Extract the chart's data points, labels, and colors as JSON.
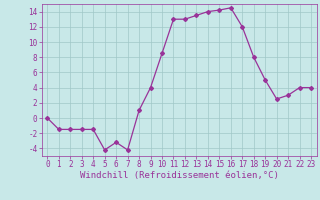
{
  "x": [
    0,
    1,
    2,
    3,
    4,
    5,
    6,
    7,
    8,
    9,
    10,
    11,
    12,
    13,
    14,
    15,
    16,
    17,
    18,
    19,
    20,
    21,
    22,
    23
  ],
  "y": [
    0,
    -1.5,
    -1.5,
    -1.5,
    -1.5,
    -4.2,
    -3.2,
    -4.2,
    1,
    4,
    8.5,
    13,
    13,
    13.5,
    14,
    14.2,
    14.5,
    12,
    8,
    5,
    2.5,
    3,
    4,
    4
  ],
  "line_color": "#993399",
  "marker": "D",
  "marker_size": 2.0,
  "bg_color": "#c8e8e8",
  "grid_color": "#a0c8c8",
  "xlabel": "Windchill (Refroidissement éolien,°C)",
  "xlabel_fontsize": 6.5,
  "ylim": [
    -5,
    15
  ],
  "yticks": [
    -4,
    -2,
    0,
    2,
    4,
    6,
    8,
    10,
    12,
    14
  ],
  "xticks": [
    0,
    1,
    2,
    3,
    4,
    5,
    6,
    7,
    8,
    9,
    10,
    11,
    12,
    13,
    14,
    15,
    16,
    17,
    18,
    19,
    20,
    21,
    22,
    23
  ],
  "tick_fontsize": 5.5,
  "linewidth": 0.9
}
